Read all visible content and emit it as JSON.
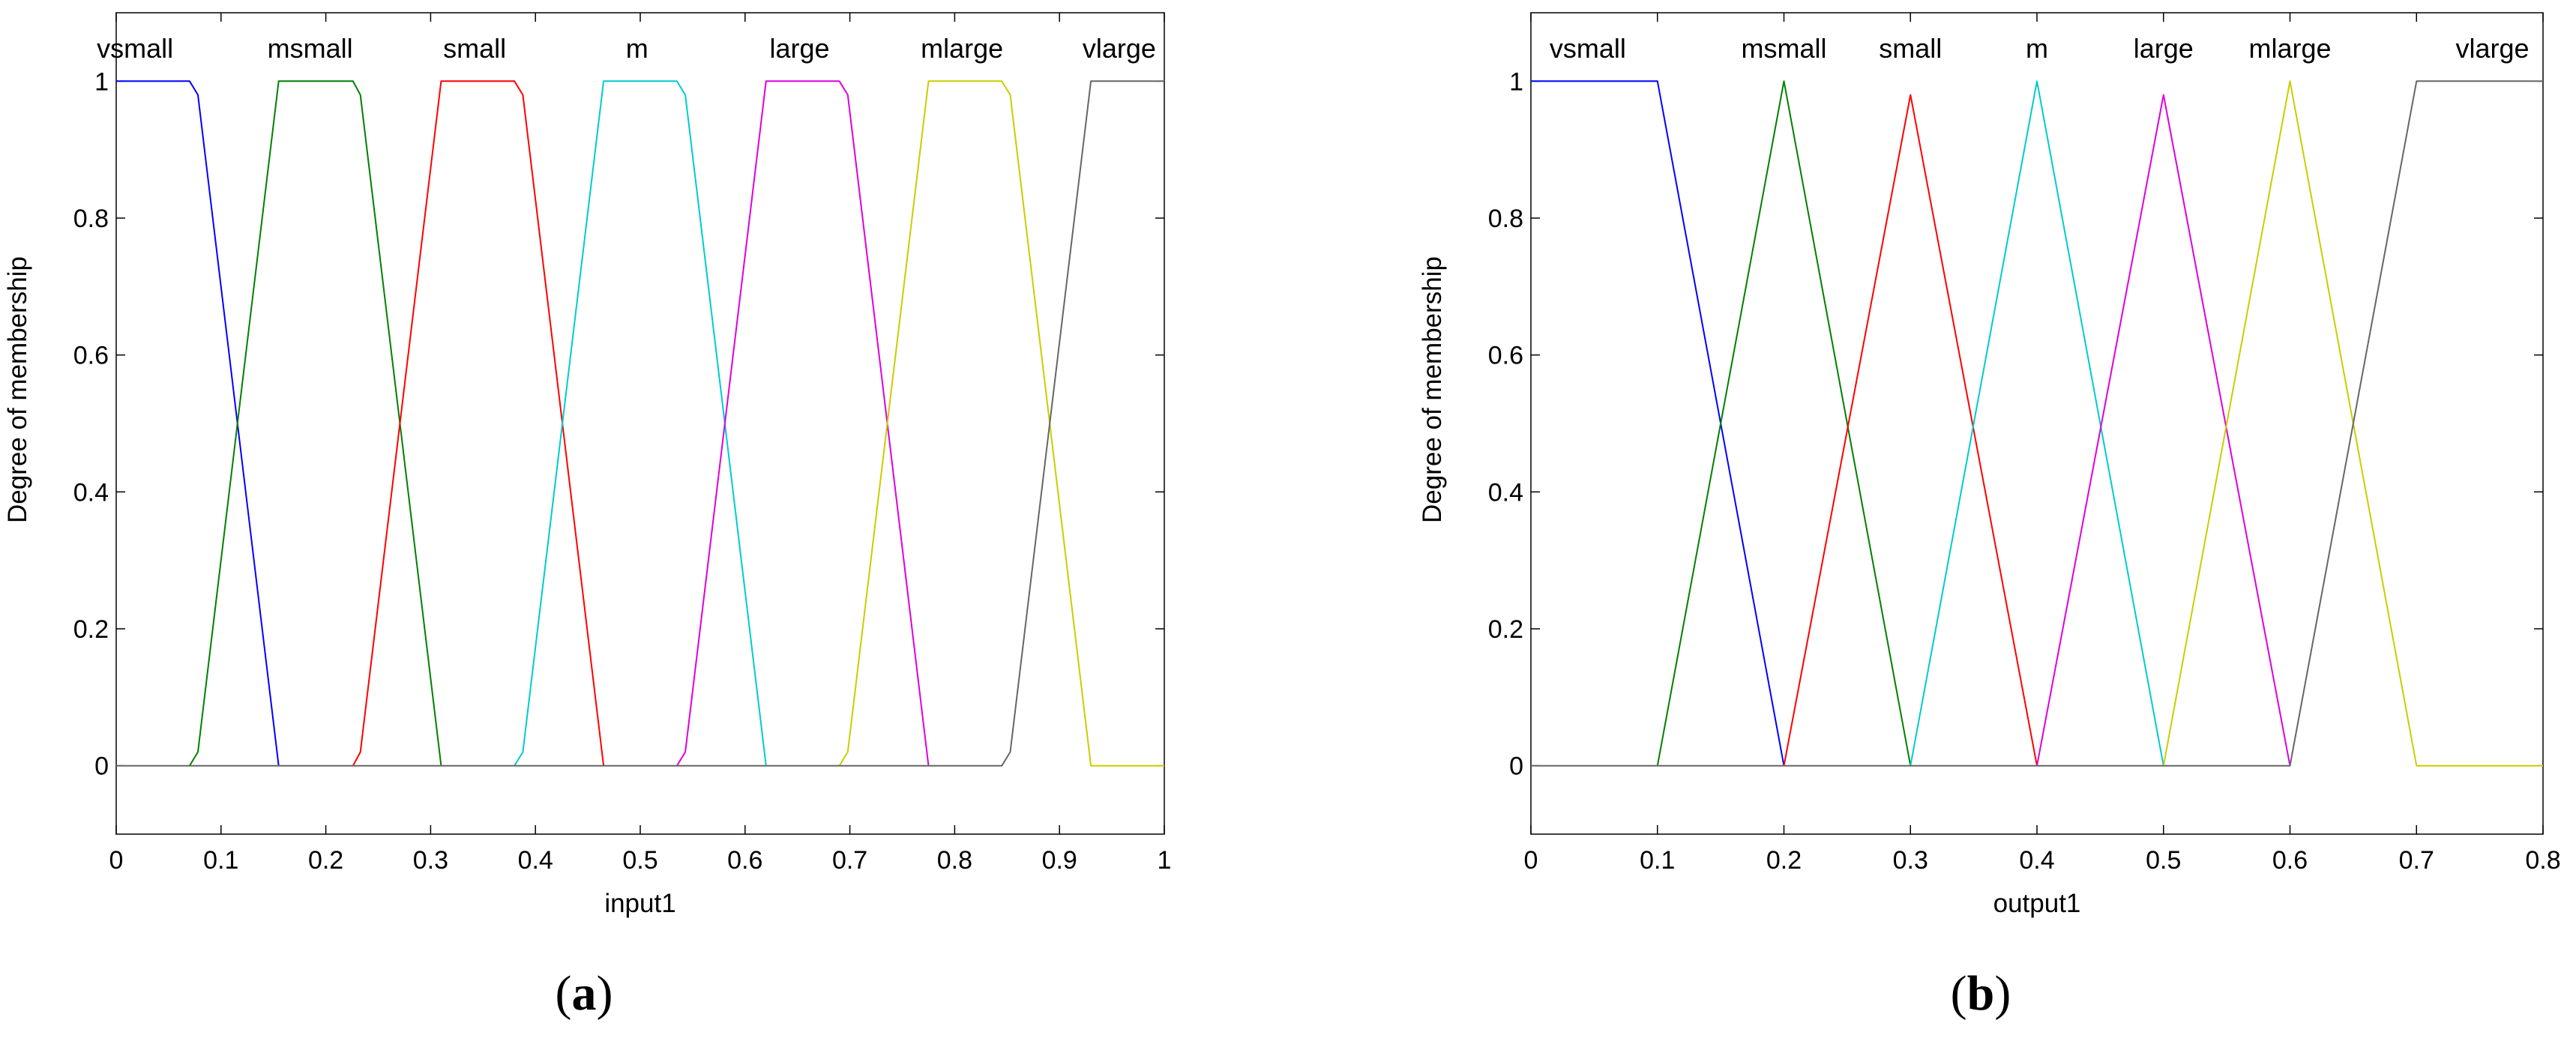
{
  "chart_data": [
    {
      "type": "line",
      "caption": "a",
      "xlabel": "input1",
      "ylabel": "Degree of membership",
      "xlim": [
        0,
        1
      ],
      "ylim": [
        -0.1,
        1.1
      ],
      "xticks": [
        "0",
        "0.1",
        "0.2",
        "0.3",
        "0.4",
        "0.5",
        "0.6",
        "0.7",
        "0.8",
        "0.9",
        "1"
      ],
      "yticks": [
        "0",
        "0.2",
        "0.4",
        "0.6",
        "0.8",
        "1"
      ],
      "grid": false,
      "series": [
        {
          "name": "vsmall",
          "color": "#0000ff",
          "x": [
            0,
            0.07,
            0.078,
            0.155
          ],
          "values": [
            1,
            1,
            0.98,
            0
          ],
          "label_x": 0.018
        },
        {
          "name": "msmall",
          "color": "#008000",
          "x": [
            0.07,
            0.078,
            0.155,
            0.226,
            0.233,
            0.31
          ],
          "values": [
            0,
            0.02,
            1,
            1,
            0.98,
            0
          ],
          "label_x": 0.185
        },
        {
          "name": "small",
          "color": "#ff0000",
          "x": [
            0.226,
            0.233,
            0.31,
            0.38,
            0.388,
            0.465
          ],
          "values": [
            0,
            0.02,
            1,
            1,
            0.98,
            0
          ],
          "label_x": 0.342
        },
        {
          "name": "m",
          "color": "#00cccc",
          "x": [
            0.38,
            0.388,
            0.465,
            0.535,
            0.543,
            0.62
          ],
          "values": [
            0,
            0.02,
            1,
            1,
            0.98,
            0
          ],
          "label_x": 0.497
        },
        {
          "name": "large",
          "color": "#dd00dd",
          "x": [
            0.535,
            0.543,
            0.62,
            0.69,
            0.698,
            0.775
          ],
          "values": [
            0,
            0.02,
            1,
            1,
            0.98,
            0
          ],
          "label_x": 0.652
        },
        {
          "name": "mlarge",
          "color": "#cccc00",
          "x": [
            0.69,
            0.698,
            0.775,
            0.845,
            0.853,
            0.93,
            1
          ],
          "values": [
            0,
            0.02,
            1,
            1,
            0.98,
            0,
            0
          ],
          "label_x": 0.807
        },
        {
          "name": "vlarge",
          "color": "#666666",
          "x": [
            0,
            0.845,
            0.853,
            0.93,
            1
          ],
          "values": [
            0,
            0,
            0.02,
            1,
            1
          ],
          "label_x": 0.957
        }
      ]
    },
    {
      "type": "line",
      "caption": "b",
      "xlabel": "output1",
      "ylabel": "Degree of membership",
      "xlim": [
        0,
        0.8
      ],
      "ylim": [
        -0.1,
        1.1
      ],
      "xticks": [
        "0",
        "0.1",
        "0.2",
        "0.3",
        "0.4",
        "0.5",
        "0.6",
        "0.7",
        "0.8"
      ],
      "yticks": [
        "0",
        "0.2",
        "0.4",
        "0.6",
        "0.8",
        "1"
      ],
      "grid": false,
      "series": [
        {
          "name": "vsmall",
          "color": "#0000ff",
          "x": [
            0,
            0.1,
            0.2
          ],
          "values": [
            1,
            1,
            0
          ],
          "label_x": 0.045
        },
        {
          "name": "msmall",
          "color": "#008000",
          "x": [
            0.1,
            0.2,
            0.3
          ],
          "values": [
            0,
            1,
            0
          ],
          "label_x": 0.2
        },
        {
          "name": "small",
          "color": "#ff0000",
          "x": [
            0.2,
            0.3,
            0.4
          ],
          "values": [
            0,
            0.98,
            0
          ],
          "label_x": 0.3
        },
        {
          "name": "m",
          "color": "#00cccc",
          "x": [
            0.3,
            0.4,
            0.5
          ],
          "values": [
            0,
            1,
            0
          ],
          "label_x": 0.4
        },
        {
          "name": "large",
          "color": "#dd00dd",
          "x": [
            0.4,
            0.5,
            0.6
          ],
          "values": [
            0,
            0.98,
            0
          ],
          "label_x": 0.5
        },
        {
          "name": "mlarge",
          "color": "#cccc00",
          "x": [
            0.5,
            0.6,
            0.7,
            0.8
          ],
          "values": [
            0,
            1,
            0,
            0
          ],
          "label_x": 0.6
        },
        {
          "name": "vlarge",
          "color": "#666666",
          "x": [
            0,
            0.6,
            0.7,
            0.8
          ],
          "values": [
            0,
            0,
            1,
            1
          ],
          "label_x": 0.76
        }
      ]
    }
  ]
}
